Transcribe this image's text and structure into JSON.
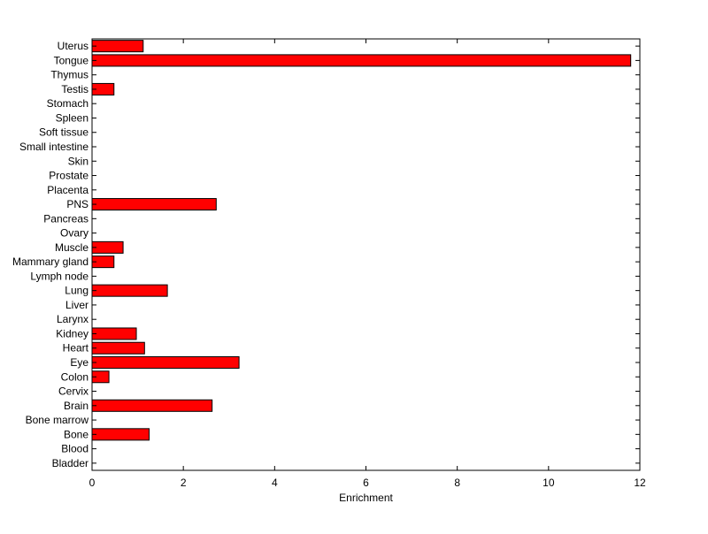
{
  "chart_data": {
    "type": "bar",
    "orientation": "horizontal",
    "title": "",
    "xlabel": "Enrichment",
    "ylabel": "",
    "xlim": [
      0,
      12
    ],
    "xticks": [
      0,
      2,
      4,
      6,
      8,
      10,
      12
    ],
    "grid": false,
    "legend": "none",
    "bar_color": "#ff0000",
    "bar_edge_color": "#000000",
    "categories": [
      "Uterus",
      "Tongue",
      "Thymus",
      "Testis",
      "Stomach",
      "Spleen",
      "Soft tissue",
      "Small intestine",
      "Skin",
      "Prostate",
      "Placenta",
      "PNS",
      "Pancreas",
      "Ovary",
      "Muscle",
      "Mammary gland",
      "Lymph node",
      "Lung",
      "Liver",
      "Larynx",
      "Kidney",
      "Heart",
      "Eye",
      "Colon",
      "Cervix",
      "Brain",
      "Bone marrow",
      "Bone",
      "Blood",
      "Bladder"
    ],
    "values": [
      1.12,
      11.8,
      0,
      0.48,
      0,
      0,
      0,
      0,
      0,
      0,
      0,
      2.72,
      0,
      0,
      0.68,
      0.48,
      0,
      1.65,
      0,
      0,
      0.97,
      1.15,
      3.22,
      0.37,
      0,
      2.63,
      0,
      1.25,
      0,
      0
    ]
  }
}
